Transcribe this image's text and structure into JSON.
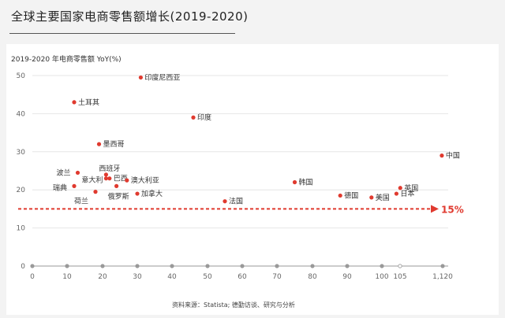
{
  "header": {
    "title": "全球主要国家电商零售额增长(2019-2020)"
  },
  "chart_data": {
    "type": "scatter",
    "title": "全球主要国家电商零售额增长(2019-2020)",
    "ylabel": "2019-2020 年电商零售额 YoY(%)",
    "xlabel": "",
    "y_ticks": [
      "0",
      "10",
      "20",
      "30",
      "40",
      "50"
    ],
    "x_ticks": [
      "0",
      "10",
      "20",
      "30",
      "40",
      "50",
      "60",
      "70",
      "80",
      "90",
      "100",
      "105",
      "1,120"
    ],
    "points": [
      {
        "name": "印度尼西亚",
        "x": 31,
        "y": 49.5
      },
      {
        "name": "土耳其",
        "x": 12,
        "y": 43
      },
      {
        "name": "印度",
        "x": 46,
        "y": 39
      },
      {
        "name": "墨西哥",
        "x": 19,
        "y": 32
      },
      {
        "name": "中国",
        "x": 1100,
        "y": 29
      },
      {
        "name": "西班牙",
        "x": 21,
        "y": 24
      },
      {
        "name": "波兰",
        "x": 13,
        "y": 24.5
      },
      {
        "name": "意大利",
        "x": 21,
        "y": 23
      },
      {
        "name": "巴西",
        "x": 22,
        "y": 23
      },
      {
        "name": "澳大利亚",
        "x": 27,
        "y": 22.5
      },
      {
        "name": "韩国",
        "x": 75,
        "y": 22
      },
      {
        "name": "瑞典",
        "x": 12,
        "y": 21
      },
      {
        "name": "俄罗斯",
        "x": 24,
        "y": 21
      },
      {
        "name": "英国",
        "x": 110,
        "y": 20.5
      },
      {
        "name": "荷兰",
        "x": 18,
        "y": 19.5
      },
      {
        "name": "加拿大",
        "x": 30,
        "y": 19
      },
      {
        "name": "德国",
        "x": 88,
        "y": 18.5
      },
      {
        "name": "日本",
        "x": 104,
        "y": 19
      },
      {
        "name": "美国",
        "x": 97,
        "y": 18
      },
      {
        "name": "法国",
        "x": 55,
        "y": 17
      }
    ],
    "reference_line": {
      "y": 15,
      "label": "15%"
    },
    "source": "资料来源：Statista; 德勤访谈、研究与分析",
    "colors": {
      "point": "#e03a2f",
      "reference": "#e03a2f",
      "grid": "#e6e6e6"
    }
  }
}
